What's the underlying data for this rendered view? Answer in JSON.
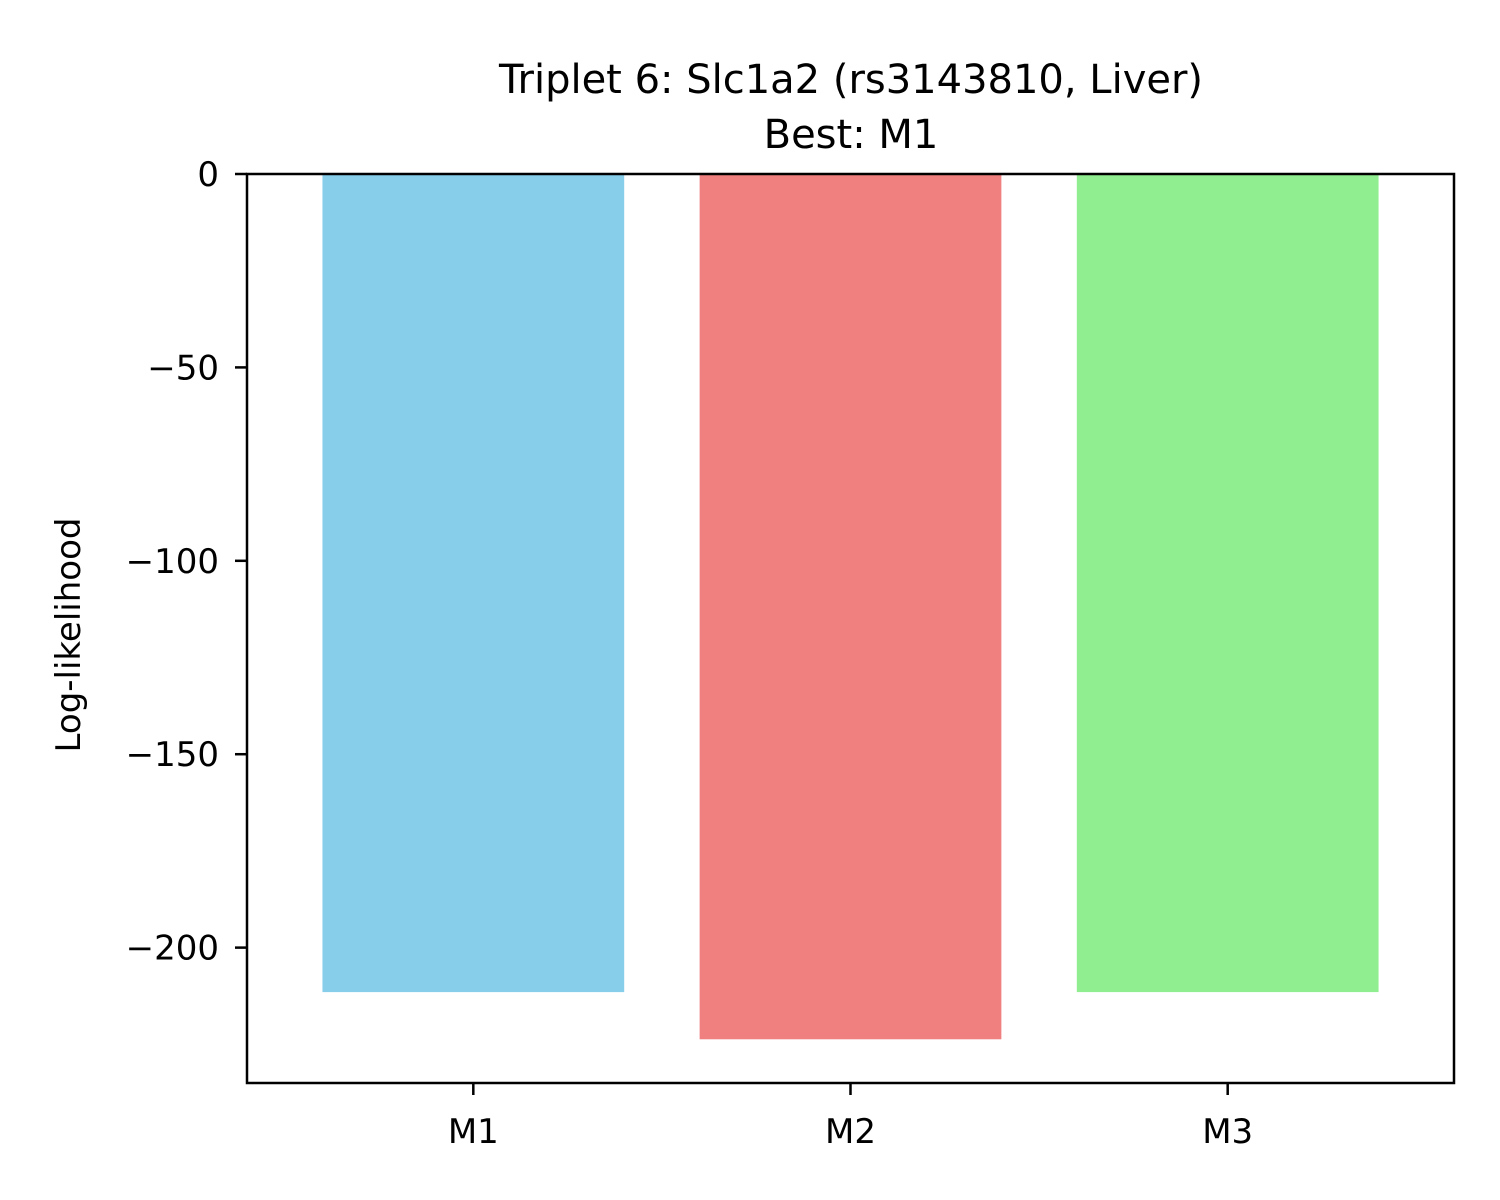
{
  "chart_data": {
    "type": "bar",
    "title": "Triplet 6: Slc1a2 (rs3143810, Liver)",
    "subtitle": "Best: M1",
    "xlabel": "",
    "ylabel": "Log-likelihood",
    "categories": [
      "M1",
      "M2",
      "M3"
    ],
    "values": [
      -211.5,
      -223.7,
      -211.5
    ],
    "colors": [
      "#87ceeb",
      "#f08080",
      "#90ee90"
    ],
    "ylim": [
      -235,
      0
    ],
    "yticks": [
      0,
      -50,
      -100,
      -150,
      -200
    ],
    "ytick_labels": [
      "0",
      "−50",
      "−100",
      "−150",
      "−200"
    ],
    "grid": false,
    "legend": "none"
  }
}
